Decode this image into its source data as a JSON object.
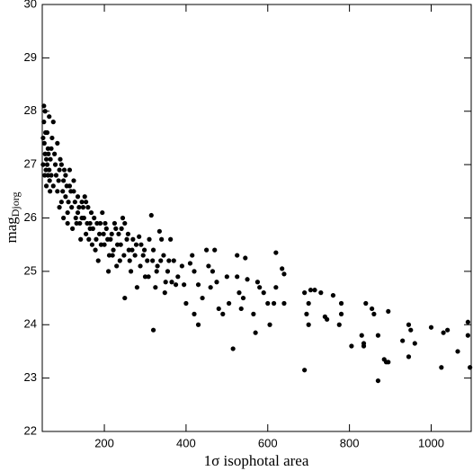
{
  "chart_data": {
    "type": "scatter",
    "xlabel": "1σ  isophotal area",
    "ylabel": {
      "text": "mag",
      "subscript": "Djorg"
    },
    "color": "#000000",
    "xlim": [
      48,
      1098
    ],
    "ylim": [
      22,
      30
    ],
    "xticks": [
      200,
      400,
      600,
      800,
      1000
    ],
    "yticks": [
      22,
      23,
      24,
      25,
      26,
      27,
      28,
      29,
      30
    ],
    "x": [
      1095,
      1090,
      1090,
      1065,
      1040,
      1030,
      1025,
      1000,
      960,
      950,
      945,
      945,
      930,
      895,
      890,
      895,
      885,
      870,
      870,
      860,
      855,
      840,
      835,
      830,
      835,
      805,
      780,
      780,
      775,
      760,
      745,
      740,
      730,
      715,
      705,
      700,
      695,
      700,
      690,
      690,
      640,
      640,
      635,
      620,
      620,
      615,
      600,
      605,
      590,
      580,
      575,
      570,
      565,
      550,
      545,
      540,
      535,
      530,
      525,
      525,
      515,
      505,
      500,
      490,
      480,
      475,
      470,
      465,
      460,
      455,
      450,
      440,
      430,
      430,
      420,
      420,
      415,
      410,
      400,
      395,
      390,
      380,
      375,
      370,
      365,
      355,
      350,
      345,
      340,
      335,
      330,
      325,
      320,
      320,
      315,
      310,
      305,
      300,
      295,
      290,
      285,
      280,
      275,
      270,
      265,
      260,
      255,
      250,
      250,
      245,
      240,
      235,
      230,
      225,
      220,
      215,
      210,
      205,
      200,
      195,
      190,
      185,
      180,
      175,
      170,
      165,
      160,
      155,
      150,
      145,
      140,
      135,
      130,
      125,
      120,
      115,
      110,
      105,
      100,
      95,
      90,
      85,
      80,
      75,
      70,
      65,
      60,
      55,
      52,
      55,
      52,
      65,
      58,
      62,
      68,
      72,
      78,
      82,
      88,
      92,
      98,
      102,
      108,
      112,
      118,
      122,
      128,
      132,
      138,
      142,
      148,
      152,
      158,
      162,
      168,
      172,
      178,
      182,
      188,
      192,
      198,
      202,
      208,
      212,
      218,
      222,
      228,
      232,
      238,
      242,
      248,
      258,
      262,
      268,
      278,
      288,
      298,
      308,
      318,
      328,
      338,
      348,
      358,
      362,
      85,
      95,
      75,
      62,
      57,
      67,
      105,
      115,
      125,
      135,
      145,
      155,
      165,
      110,
      100,
      90,
      50,
      53,
      56,
      50,
      54,
      58,
      60,
      63,
      66,
      70
    ],
    "values": [
      23.2,
      23.8,
      24.05,
      23.5,
      23.9,
      23.85,
      23.2,
      23.95,
      23.65,
      23.9,
      24.0,
      23.4,
      23.7,
      23.3,
      23.3,
      24.25,
      23.35,
      22.95,
      23.8,
      24.2,
      24.3,
      24.4,
      23.65,
      23.8,
      23.6,
      23.6,
      24.2,
      24.4,
      24.0,
      24.55,
      24.1,
      24.15,
      24.6,
      24.65,
      24.65,
      24.0,
      24.2,
      24.4,
      24.6,
      23.15,
      24.4,
      24.95,
      25.05,
      25.35,
      24.7,
      24.4,
      24.4,
      24.0,
      24.6,
      24.7,
      24.8,
      23.85,
      24.2,
      24.85,
      25.25,
      24.5,
      24.3,
      24.6,
      24.9,
      25.3,
      23.55,
      24.4,
      24.9,
      24.2,
      24.3,
      24.8,
      25.4,
      25.0,
      24.7,
      25.1,
      25.4,
      24.5,
      24.0,
      24.75,
      24.2,
      25.0,
      25.3,
      25.15,
      24.4,
      24.75,
      25.1,
      24.9,
      24.75,
      25.2,
      24.8,
      25.0,
      24.8,
      25.3,
      25.6,
      25.75,
      25.1,
      24.7,
      23.9,
      25.4,
      26.05,
      25.6,
      25.2,
      24.9,
      25.3,
      25.5,
      25.65,
      24.7,
      25.3,
      25.6,
      25.0,
      25.4,
      25.6,
      24.5,
      25.9,
      26.0,
      25.5,
      25.7,
      25.1,
      25.9,
      25.3,
      25.6,
      25.0,
      25.8,
      25.5,
      26.1,
      25.9,
      25.2,
      25.6,
      26.0,
      25.5,
      25.8,
      26.2,
      25.7,
      26.0,
      26.3,
      25.9,
      26.4,
      26.0,
      26.5,
      26.2,
      26.6,
      26.1,
      26.4,
      26.7,
      26.3,
      26.9,
      26.5,
      27.0,
      26.6,
      27.3,
      26.9,
      27.6,
      27.2,
      28.1,
      28.0,
      27.8,
      27.9,
      26.6,
      26.8,
      27.1,
      27.5,
      27.2,
      26.8,
      26.7,
      27.1,
      26.5,
      26.9,
      26.6,
      26.3,
      26.5,
      25.8,
      26.3,
      25.9,
      26.2,
      25.6,
      26.2,
      26.4,
      25.9,
      25.6,
      26.1,
      25.8,
      25.4,
      25.9,
      25.7,
      25.5,
      25.7,
      25.9,
      25.6,
      25.3,
      25.7,
      25.4,
      25.8,
      25.5,
      25.2,
      25.8,
      25.3,
      25.7,
      25.2,
      25.4,
      25.5,
      25.1,
      25.4,
      24.9,
      25.2,
      25.0,
      25.2,
      24.6,
      25.2,
      25.6,
      27.4,
      27.0,
      27.8,
      27.3,
      26.9,
      26.5,
      26.8,
      26.9,
      26.7,
      26.1,
      26.0,
      26.3,
      25.9,
      25.9,
      26.0,
      26.2,
      27.0,
      27.4,
      27.6,
      27.5,
      26.8,
      27.1,
      27.0,
      27.2,
      26.7,
      26.8
    ]
  }
}
